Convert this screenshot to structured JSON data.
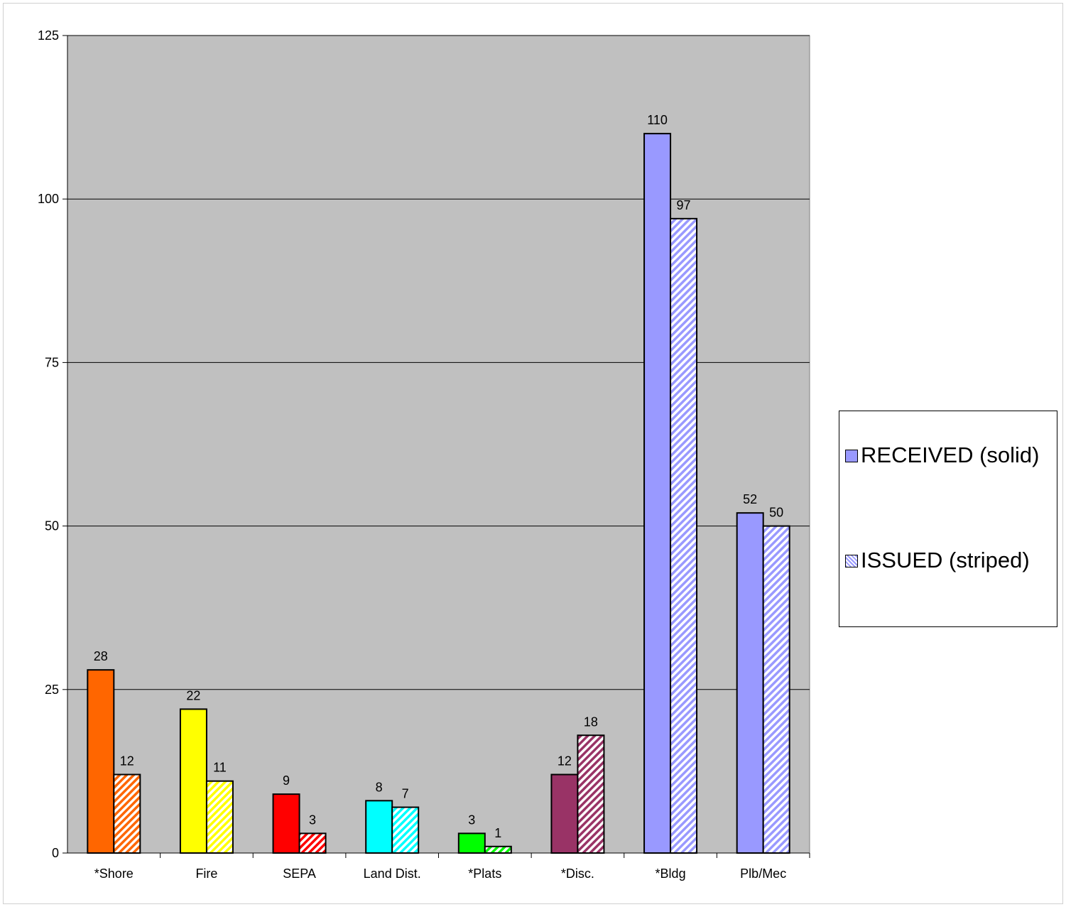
{
  "chart_data": {
    "type": "bar",
    "categories": [
      "*Shore",
      "Fire",
      "SEPA",
      "Land Dist.",
      "*Plats",
      "*Disc.",
      "*Bldg",
      "Plb/Mec"
    ],
    "category_colors": [
      "#ff6600",
      "#ffff00",
      "#ff0000",
      "#00ffff",
      "#00ff00",
      "#993366",
      "#9999ff",
      "#9999ff"
    ],
    "series": [
      {
        "name": "RECEIVED (solid)",
        "fill": "solid",
        "values": [
          28,
          22,
          9,
          8,
          3,
          12,
          110,
          52
        ]
      },
      {
        "name": "ISSUED (striped)",
        "fill": "striped",
        "values": [
          12,
          11,
          3,
          7,
          1,
          18,
          97,
          50
        ]
      }
    ],
    "ylim": [
      0,
      125
    ],
    "yticks": [
      0,
      25,
      50,
      75,
      100,
      125
    ],
    "grid": true,
    "plot_background": "#c0c0c0",
    "legend_position": "right",
    "title": "",
    "xlabel": "",
    "ylabel": ""
  },
  "legend": {
    "received_label": "RECEIVED (solid)",
    "issued_label": "ISSUED (striped)",
    "swatch_color": "#9999ff"
  }
}
